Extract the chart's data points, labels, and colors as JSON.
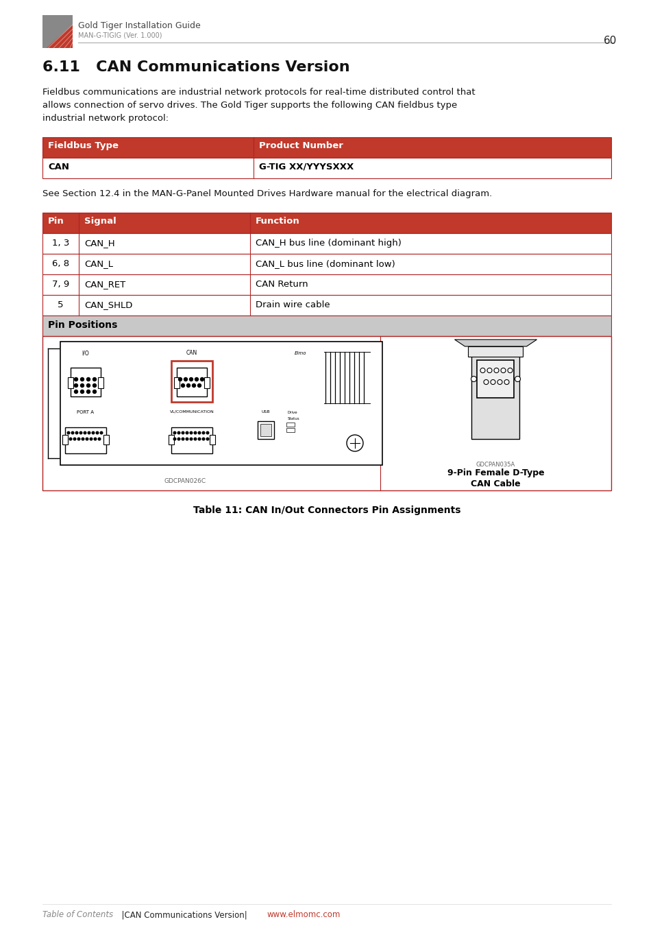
{
  "page_number": "60",
  "header_title": "Gold Tiger Installation Guide",
  "header_subtitle": "MAN-G-TIGIG (Ver. 1.000)",
  "section_title": "6.11   CAN Communications Version",
  "body_lines": [
    "Fieldbus communications are industrial network protocols for real-time distributed control that",
    "allows connection of servo drives. The Gold Tiger supports the following CAN fieldbus type",
    "industrial network protocol:"
  ],
  "table1_headers": [
    "Fieldbus Type",
    "Product Number"
  ],
  "table1_rows": [
    [
      "CAN",
      "G-TIG XX/YYYSXXX"
    ]
  ],
  "caption_text": "See Section 12.4 in the MAN-G-Panel Mounted Drives Hardware manual for the electrical diagram.",
  "table2_headers": [
    "Pin",
    "Signal",
    "Function"
  ],
  "table2_rows": [
    [
      "1, 3",
      "CAN_H",
      "CAN_H bus line (dominant high)"
    ],
    [
      "6, 8",
      "CAN_L",
      "CAN_L bus line (dominant low)"
    ],
    [
      "7, 9",
      "CAN_RET",
      "CAN Return"
    ],
    [
      "5",
      "CAN_SHLD",
      "Drain wire cable"
    ]
  ],
  "pin_positions_label": "Pin Positions",
  "image_caption_left": "GDCPAN026C",
  "image_caption_right": "GDCPAN035A",
  "image_label_line1": "9-Pin Female D-Type",
  "image_label_line2": "CAN Cable",
  "table_caption": "Table 11: CAN In/Out Connectors Pin Assignments",
  "footer_left": "Table of Contents",
  "footer_sep": "  |CAN Communications Version|",
  "footer_link": "www.elmomc.com",
  "red": "#C0392B",
  "dark_red": "#B22222",
  "gray_bg": "#C8C8C8",
  "border_red": "#B22222",
  "white": "#FFFFFF",
  "black": "#000000",
  "text_gray": "#555555",
  "header_line_gray": "#AAAAAA"
}
